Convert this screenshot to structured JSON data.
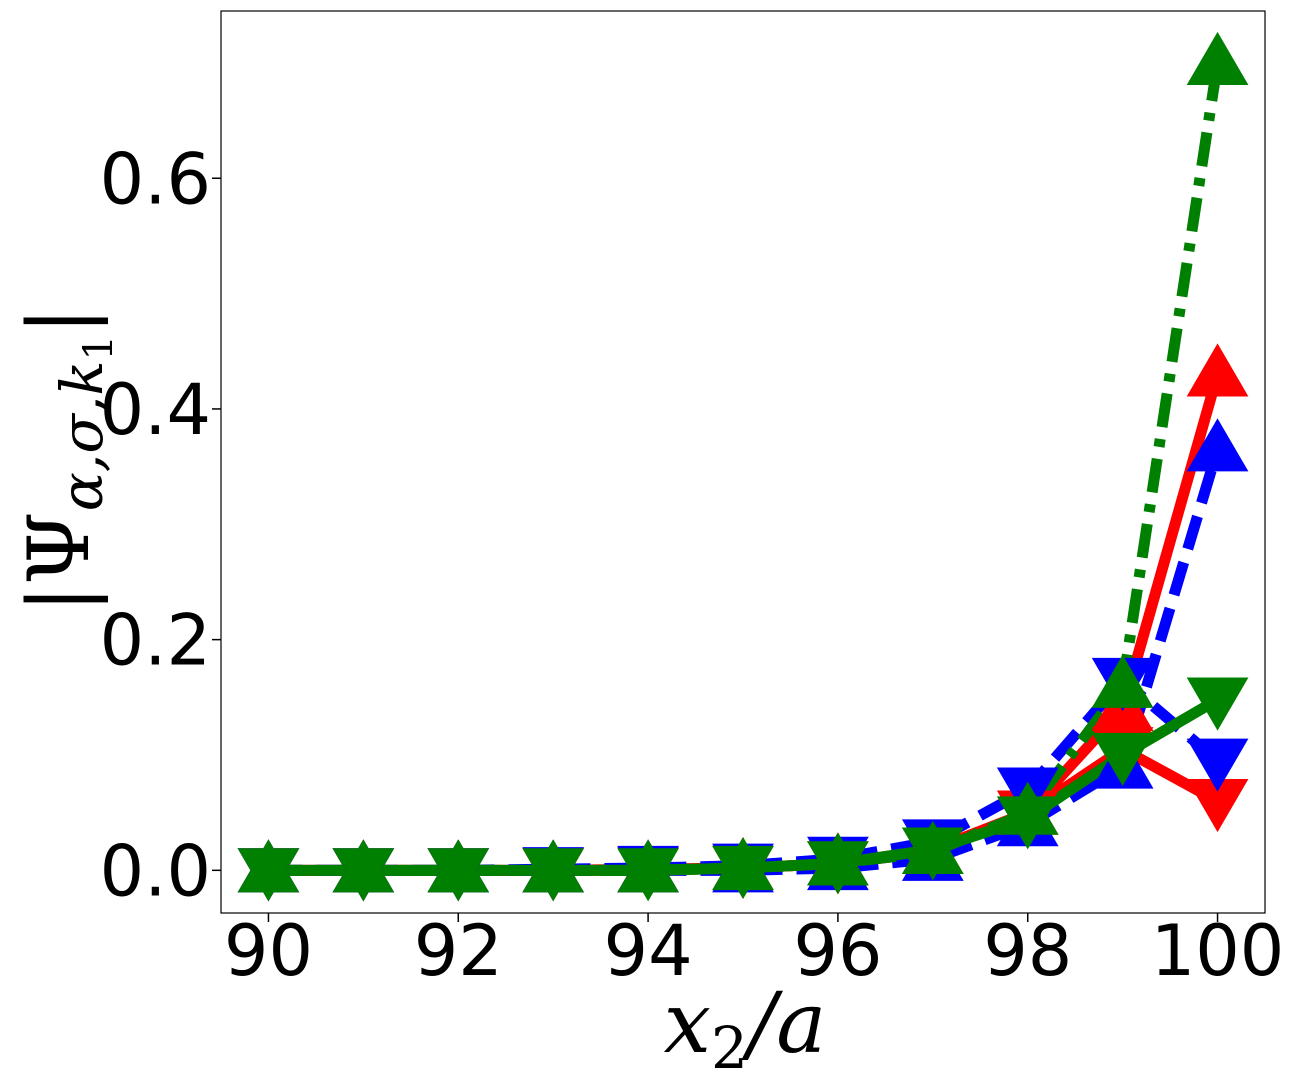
{
  "chart_data": {
    "type": "line",
    "xlabel": {
      "var": "x",
      "sub": "2",
      "rest": "/a"
    },
    "ylabel": {
      "bar": "|",
      "var": "Ψ",
      "sub": "α,σ,k",
      "subsub": "1",
      "bar_end": "|"
    },
    "xlim": [
      89.5,
      100.5
    ],
    "ylim": [
      -0.037,
      0.745
    ],
    "xticks": [
      90,
      92,
      94,
      96,
      98,
      100
    ],
    "yticks": [
      0.0,
      0.2,
      0.4,
      0.6
    ],
    "xtick_labels": [
      "90",
      "92",
      "94",
      "96",
      "98",
      "100"
    ],
    "ytick_labels": [
      "0.0",
      "0.2",
      "0.4",
      "0.6"
    ],
    "grid": false,
    "x": [
      90,
      91,
      92,
      93,
      94,
      95,
      96,
      97,
      98,
      99,
      100
    ],
    "series": [
      {
        "color": "#ff0000",
        "line_style": "solid",
        "marker": "triangle-down",
        "values": [
          0.0,
          0.0,
          0.0,
          0.0,
          0.001,
          0.002,
          0.006,
          0.018,
          0.05,
          0.105,
          0.06
        ]
      },
      {
        "color": "#ff0000",
        "line_style": "solid",
        "marker": "triangle-up",
        "values": [
          0.0,
          0.0,
          0.0,
          0.0,
          0.0,
          0.002,
          0.006,
          0.016,
          0.05,
          0.14,
          0.43
        ]
      },
      {
        "color": "#0000ff",
        "line_style": "dashed",
        "marker": "triangle-up",
        "values": [
          0.0,
          0.0,
          0.0,
          0.0,
          0.0,
          0.0,
          0.002,
          0.01,
          0.04,
          0.09,
          0.365
        ]
      },
      {
        "color": "#0000ff",
        "line_style": "dashed",
        "marker": "triangle-down",
        "values": [
          0.0,
          0.0,
          0.0,
          0.001,
          0.002,
          0.004,
          0.01,
          0.025,
          0.07,
          0.165,
          0.095
        ]
      },
      {
        "color": "#008000",
        "line_style": "dashdot",
        "marker": "triangle-up",
        "values": [
          0.0,
          0.0,
          0.0,
          0.0,
          0.0,
          0.002,
          0.006,
          0.016,
          0.05,
          0.16,
          0.7
        ]
      },
      {
        "color": "#008000",
        "line_style": "solid",
        "marker": "triangle-down",
        "values": [
          0.0,
          0.0,
          0.0,
          0.0,
          0.0,
          0.002,
          0.006,
          0.018,
          0.045,
          0.1,
          0.148
        ]
      }
    ]
  }
}
